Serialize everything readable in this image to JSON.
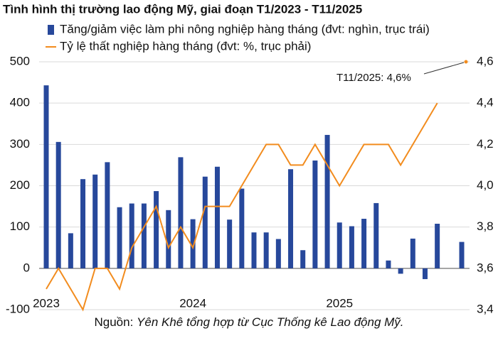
{
  "chart_data": {
    "type": "bar",
    "title": "Tình hình thị trường lao động Mỹ, giai đoạn T1/2023 - T11/2025",
    "categories": [
      "2023",
      null,
      null,
      null,
      null,
      null,
      null,
      null,
      null,
      null,
      null,
      null,
      "2024",
      null,
      null,
      null,
      null,
      null,
      null,
      null,
      null,
      null,
      null,
      null,
      "2025",
      null,
      null,
      null,
      null,
      null,
      null,
      null,
      null,
      null,
      null
    ],
    "series": [
      {
        "name": "Tăng/giảm việc làm phi nông nghiệp hàng tháng (đvt: nghìn, trục trái)",
        "type": "bar",
        "color": "#27489b",
        "values": [
          443,
          306,
          85,
          216,
          227,
          257,
          148,
          157,
          157,
          187,
          141,
          269,
          119,
          222,
          246,
          118,
          193,
          87,
          87,
          71,
          240,
          44,
          261,
          323,
          111,
          102,
          120,
          158,
          19,
          -13,
          72,
          -26,
          108,
          null,
          64
        ]
      },
      {
        "name": "Tỷ lệ thất nghiệp hàng tháng (đvt: %, trục phải)",
        "type": "line",
        "axis": "y2",
        "color": "#f28c1e",
        "values": [
          3.5,
          3.6,
          3.5,
          3.4,
          3.6,
          3.6,
          3.5,
          3.7,
          3.8,
          3.9,
          3.7,
          3.8,
          3.7,
          3.9,
          3.9,
          3.9,
          4.0,
          4.1,
          4.2,
          4.2,
          4.1,
          4.1,
          4.2,
          4.1,
          4.0,
          4.1,
          4.2,
          4.2,
          4.2,
          4.1,
          4.2,
          4.3,
          4.4,
          null,
          4.6
        ]
      }
    ],
    "ylim": [
      -100,
      500
    ],
    "yticks": [
      -100,
      0,
      100,
      200,
      300,
      400,
      500
    ],
    "y2lim": [
      3.4,
      4.6
    ],
    "y2ticks": [
      {
        "value": 3.4,
        "label": "3,4"
      },
      {
        "value": 3.6,
        "label": "3,6"
      },
      {
        "value": 3.8,
        "label": "3,8"
      },
      {
        "value": 4.0,
        "label": "4,0"
      },
      {
        "value": 4.2,
        "label": "4,2"
      },
      {
        "value": 4.4,
        "label": "4,4"
      },
      {
        "value": 4.6,
        "label": "4,6"
      }
    ],
    "grid": true,
    "annotation": "T11/2025: 4,6%",
    "source_label": "Nguồn:",
    "source_text": "Yên Khê tổng hợp từ Cục Thống kê Lao động Mỹ."
  }
}
